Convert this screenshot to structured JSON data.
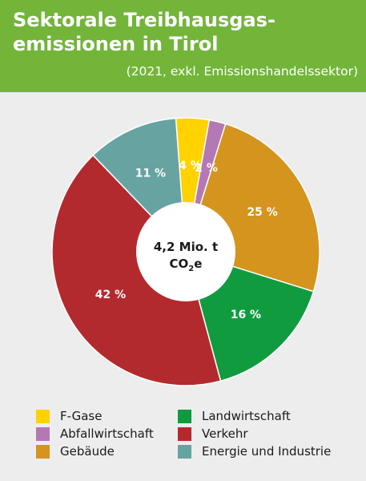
{
  "header": {
    "title": "Sektorale Treibhausgas-emissionen in Tirol",
    "subtitle": "(2021, exkl. Emissionshandelssektor)"
  },
  "chart_data": {
    "type": "pie",
    "center_label_line1": "4,2 Mio. t",
    "center_label_line2_main": "CO",
    "center_label_line2_sub": "2",
    "center_label_line2_end": "e",
    "categories": [
      "F-Gase",
      "Abfallwirtschaft",
      "Gebäude",
      "Landwirtschaft",
      "Verkehr",
      "Energie und Industrie"
    ],
    "values": [
      4,
      2,
      25,
      16,
      42,
      11
    ],
    "value_labels": [
      "4 %",
      "2 %",
      "25 %",
      "16 %",
      "42 %",
      "11 %"
    ],
    "colors": [
      "#ffd200",
      "#b478b4",
      "#d4941e",
      "#119b3f",
      "#b32a2e",
      "#67a3a1"
    ],
    "legend_placement": "bottom"
  },
  "legend": {
    "items": [
      {
        "label": "F-Gase",
        "color": "#ffd200"
      },
      {
        "label": "Landwirtschaft",
        "color": "#119b3f"
      },
      {
        "label": "Abfallwirtschaft",
        "color": "#b478b4"
      },
      {
        "label": "Verkehr",
        "color": "#b32a2e"
      },
      {
        "label": "Gebäude",
        "color": "#d4941e"
      },
      {
        "label": "Energie und Industrie",
        "color": "#67a3a1"
      }
    ]
  }
}
